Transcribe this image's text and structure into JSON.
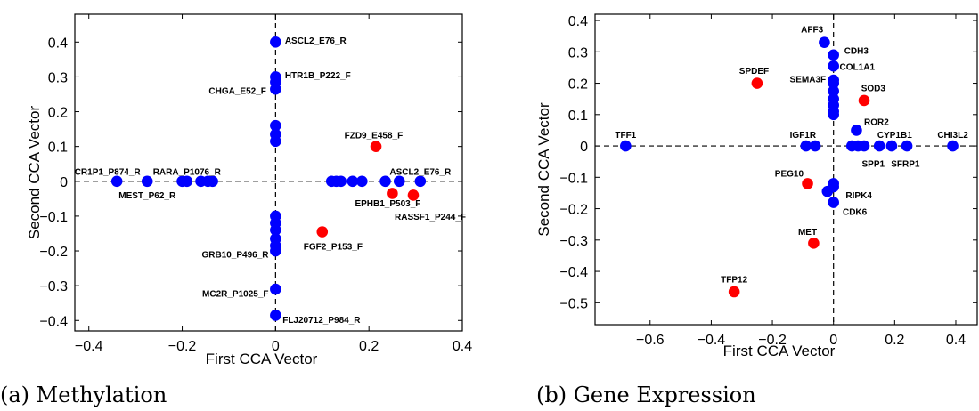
{
  "chart_data": [
    {
      "type": "scatter",
      "caption": "(a) Methylation",
      "xlabel": "First CCA Vector",
      "ylabel": "Second CCA Vector",
      "xlim": [
        -0.43,
        0.4
      ],
      "ylim": [
        -0.43,
        0.48
      ],
      "xticks": [
        -0.4,
        -0.2,
        0,
        0.2,
        0.4
      ],
      "yticks": [
        0.4,
        0.3,
        0.2,
        0.1,
        0,
        -0.1,
        -0.2,
        -0.3,
        -0.4
      ],
      "xtick_labels": [
        "−0.4",
        "−0.2",
        "0",
        "0.2",
        "0.4"
      ],
      "ytick_labels": [
        "0.4",
        "0.3",
        "0.2",
        "0.1",
        "0",
        "−0.1",
        "−0.2",
        "−0.3",
        "−0.4"
      ],
      "reference_lines": {
        "x": 0,
        "y": 0
      },
      "colors": {
        "blue": "#0000ff",
        "red": "#ff0000"
      },
      "points": [
        {
          "x": 0,
          "y": 0.4,
          "color": "blue"
        },
        {
          "x": 0,
          "y": 0.3,
          "color": "blue"
        },
        {
          "x": 0,
          "y": 0.285,
          "color": "blue"
        },
        {
          "x": 0,
          "y": 0.265,
          "color": "blue"
        },
        {
          "x": 0,
          "y": 0.16,
          "color": "blue"
        },
        {
          "x": 0,
          "y": 0.135,
          "color": "blue"
        },
        {
          "x": 0,
          "y": 0.115,
          "color": "blue"
        },
        {
          "x": 0,
          "y": -0.1,
          "color": "blue"
        },
        {
          "x": 0,
          "y": -0.12,
          "color": "blue"
        },
        {
          "x": 0,
          "y": -0.14,
          "color": "blue"
        },
        {
          "x": 0,
          "y": -0.165,
          "color": "blue"
        },
        {
          "x": 0,
          "y": -0.185,
          "color": "blue"
        },
        {
          "x": 0,
          "y": -0.2,
          "color": "blue"
        },
        {
          "x": 0,
          "y": -0.31,
          "color": "blue"
        },
        {
          "x": 0,
          "y": -0.385,
          "color": "blue"
        },
        {
          "x": -0.34,
          "y": 0,
          "color": "blue"
        },
        {
          "x": -0.275,
          "y": 0,
          "color": "blue"
        },
        {
          "x": -0.2,
          "y": 0,
          "color": "blue"
        },
        {
          "x": -0.19,
          "y": 0,
          "color": "blue"
        },
        {
          "x": -0.16,
          "y": 0,
          "color": "blue"
        },
        {
          "x": -0.145,
          "y": 0,
          "color": "blue"
        },
        {
          "x": -0.135,
          "y": 0,
          "color": "blue"
        },
        {
          "x": 0.12,
          "y": 0,
          "color": "blue"
        },
        {
          "x": 0.13,
          "y": 0,
          "color": "blue"
        },
        {
          "x": 0.14,
          "y": 0,
          "color": "blue"
        },
        {
          "x": 0.165,
          "y": 0,
          "color": "blue"
        },
        {
          "x": 0.185,
          "y": 0,
          "color": "blue"
        },
        {
          "x": 0.235,
          "y": 0,
          "color": "blue"
        },
        {
          "x": 0.265,
          "y": 0,
          "color": "blue"
        },
        {
          "x": 0.31,
          "y": 0,
          "color": "blue"
        },
        {
          "x": 0.215,
          "y": 0.1,
          "color": "red"
        },
        {
          "x": 0.1,
          "y": -0.145,
          "color": "red"
        },
        {
          "x": 0.25,
          "y": -0.035,
          "color": "red"
        },
        {
          "x": 0.295,
          "y": -0.04,
          "color": "red"
        }
      ],
      "annotations": [
        {
          "text": "ASCL2_E76_R",
          "x": 0.02,
          "y": 0.405,
          "anchor": "start"
        },
        {
          "text": "HTR1B_P222_F",
          "x": 0.02,
          "y": 0.305,
          "anchor": "start"
        },
        {
          "text": "CHGA_E52_F",
          "x": -0.02,
          "y": 0.26,
          "anchor": "end"
        },
        {
          "text": "FZD9_E458_F",
          "x": 0.21,
          "y": 0.132,
          "anchor": "middle"
        },
        {
          "text": "CR1P1_P874_R",
          "x": -0.36,
          "y": 0.028,
          "anchor": "middle"
        },
        {
          "text": "RARA_P1076_R",
          "x": -0.19,
          "y": 0.028,
          "anchor": "middle"
        },
        {
          "text": "MEST_P62_R",
          "x": -0.275,
          "y": -0.04,
          "anchor": "middle"
        },
        {
          "text": "ASCL2_E76_R",
          "x": 0.31,
          "y": 0.028,
          "anchor": "middle"
        },
        {
          "text": "EPHB1_P503_F",
          "x": 0.17,
          "y": -0.063,
          "anchor": "start"
        },
        {
          "text": "RASSF1_P244_F",
          "x": 0.255,
          "y": -0.102,
          "anchor": "start"
        },
        {
          "text": "FGF2_P153_F",
          "x": 0.06,
          "y": -0.187,
          "anchor": "start"
        },
        {
          "text": "GRB10_P496_R",
          "x": -0.015,
          "y": -0.21,
          "anchor": "end"
        },
        {
          "text": "MC2R_P1025_F",
          "x": -0.015,
          "y": -0.323,
          "anchor": "end"
        },
        {
          "text": "FLJ20712_P984_R",
          "x": 0.015,
          "y": -0.398,
          "anchor": "start"
        }
      ]
    },
    {
      "type": "scatter",
      "caption": "(b) Gene Expression",
      "xlabel": "First CCA Vector",
      "ylabel": "Second CCA Vector",
      "xlim": [
        -0.78,
        0.47
      ],
      "ylim": [
        -0.57,
        0.42
      ],
      "xticks": [
        -0.6,
        -0.4,
        -0.2,
        0,
        0.2,
        0.4
      ],
      "yticks": [
        0.4,
        0.3,
        0.2,
        0.1,
        0,
        -0.1,
        -0.2,
        -0.3,
        -0.4,
        -0.5
      ],
      "xtick_labels": [
        "−0.6",
        "−0.4",
        "−0.2",
        "0",
        "0.2",
        "0.4"
      ],
      "ytick_labels": [
        "0.4",
        "0.3",
        "0.2",
        "0.1",
        "0",
        "−0.1",
        "−0.2",
        "−0.3",
        "−0.4",
        "−0.5"
      ],
      "reference_lines": {
        "x": 0,
        "y": 0
      },
      "colors": {
        "blue": "#0000ff",
        "red": "#ff0000"
      },
      "points": [
        {
          "x": -0.03,
          "y": 0.33,
          "color": "blue"
        },
        {
          "x": 0,
          "y": 0.29,
          "color": "blue"
        },
        {
          "x": 0,
          "y": 0.255,
          "color": "blue"
        },
        {
          "x": 0,
          "y": 0.21,
          "color": "blue"
        },
        {
          "x": 0,
          "y": 0.2,
          "color": "blue"
        },
        {
          "x": 0,
          "y": 0.175,
          "color": "blue"
        },
        {
          "x": 0,
          "y": 0.15,
          "color": "blue"
        },
        {
          "x": 0,
          "y": 0.13,
          "color": "blue"
        },
        {
          "x": 0,
          "y": 0.11,
          "color": "blue"
        },
        {
          "x": 0,
          "y": 0.1,
          "color": "blue"
        },
        {
          "x": -0.68,
          "y": 0,
          "color": "blue"
        },
        {
          "x": -0.09,
          "y": 0,
          "color": "blue"
        },
        {
          "x": -0.06,
          "y": 0,
          "color": "blue"
        },
        {
          "x": 0.06,
          "y": 0,
          "color": "blue"
        },
        {
          "x": 0.08,
          "y": 0,
          "color": "blue"
        },
        {
          "x": 0.1,
          "y": 0,
          "color": "blue"
        },
        {
          "x": 0.15,
          "y": 0,
          "color": "blue"
        },
        {
          "x": 0.19,
          "y": 0,
          "color": "blue"
        },
        {
          "x": 0.24,
          "y": 0,
          "color": "blue"
        },
        {
          "x": 0.39,
          "y": 0,
          "color": "blue"
        },
        {
          "x": 0.075,
          "y": 0.05,
          "color": "blue"
        },
        {
          "x": 0,
          "y": -0.12,
          "color": "blue"
        },
        {
          "x": 0,
          "y": -0.13,
          "color": "blue"
        },
        {
          "x": -0.02,
          "y": -0.145,
          "color": "blue"
        },
        {
          "x": 0,
          "y": -0.18,
          "color": "blue"
        },
        {
          "x": -0.25,
          "y": 0.2,
          "color": "red"
        },
        {
          "x": 0.1,
          "y": 0.145,
          "color": "red"
        },
        {
          "x": -0.085,
          "y": -0.12,
          "color": "red"
        },
        {
          "x": -0.065,
          "y": -0.31,
          "color": "red"
        },
        {
          "x": -0.325,
          "y": -0.465,
          "color": "red"
        }
      ],
      "annotations": [
        {
          "text": "AFF3",
          "x": -0.07,
          "y": 0.372,
          "anchor": "middle"
        },
        {
          "text": "CDH3",
          "x": 0.035,
          "y": 0.303,
          "anchor": "start"
        },
        {
          "text": "COL1A1",
          "x": 0.02,
          "y": 0.253,
          "anchor": "start"
        },
        {
          "text": "SEMA3F",
          "x": -0.025,
          "y": 0.213,
          "anchor": "end"
        },
        {
          "text": "SPDEF",
          "x": -0.26,
          "y": 0.24,
          "anchor": "middle"
        },
        {
          "text": "SOD3",
          "x": 0.13,
          "y": 0.185,
          "anchor": "middle"
        },
        {
          "text": "ROR2",
          "x": 0.1,
          "y": 0.077,
          "anchor": "start"
        },
        {
          "text": "TFF1",
          "x": -0.68,
          "y": 0.035,
          "anchor": "middle"
        },
        {
          "text": "IGF1R",
          "x": -0.1,
          "y": 0.035,
          "anchor": "middle"
        },
        {
          "text": "CYP1B1",
          "x": 0.2,
          "y": 0.035,
          "anchor": "middle"
        },
        {
          "text": "CHI3L2",
          "x": 0.39,
          "y": 0.035,
          "anchor": "middle"
        },
        {
          "text": "SPP1",
          "x": 0.13,
          "y": -0.057,
          "anchor": "middle"
        },
        {
          "text": "SFRP1",
          "x": 0.235,
          "y": -0.057,
          "anchor": "middle"
        },
        {
          "text": "PEG10",
          "x": -0.145,
          "y": -0.088,
          "anchor": "middle"
        },
        {
          "text": "RIPK4",
          "x": 0.04,
          "y": -0.157,
          "anchor": "start"
        },
        {
          "text": "CDK6",
          "x": 0.03,
          "y": -0.21,
          "anchor": "start"
        },
        {
          "text": "MET",
          "x": -0.085,
          "y": -0.273,
          "anchor": "middle"
        },
        {
          "text": "TFP12",
          "x": -0.325,
          "y": -0.425,
          "anchor": "middle"
        }
      ]
    }
  ]
}
